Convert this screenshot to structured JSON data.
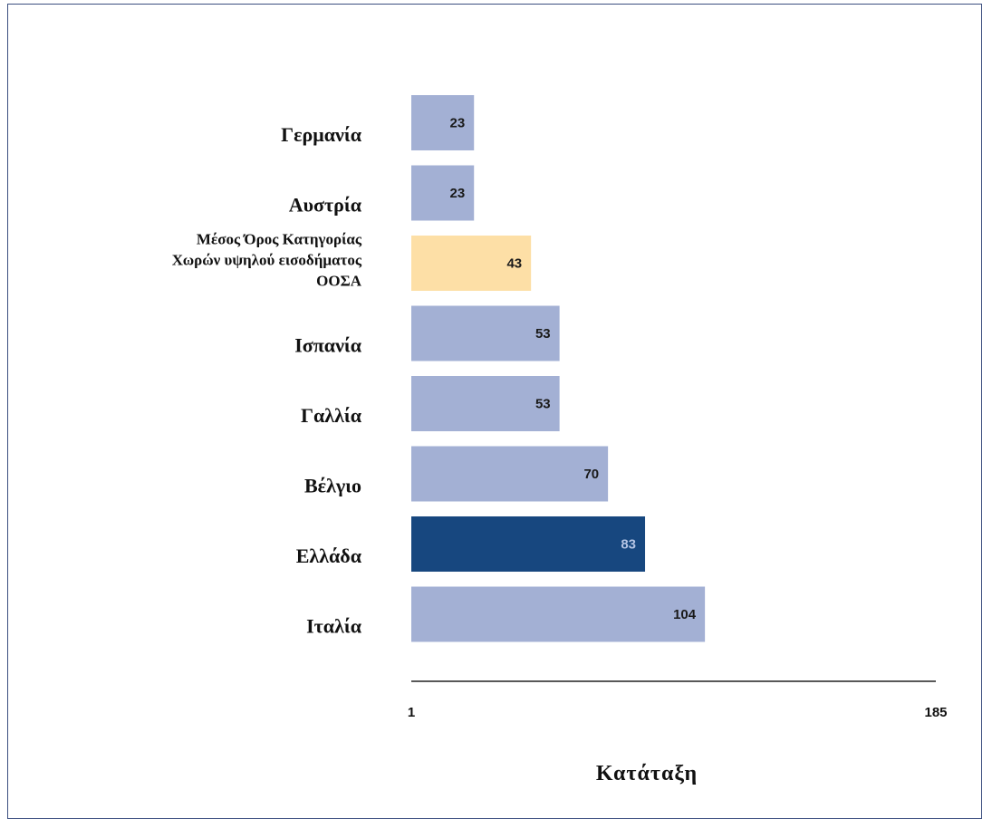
{
  "chart_data": {
    "type": "bar",
    "orientation": "horizontal",
    "categories": [
      [
        "Γερμανία"
      ],
      [
        "Αυστρία"
      ],
      [
        "Μέσος Όρος Κατηγορίας",
        "Χωρών υψηλού εισοδήματος",
        "ΟΟΣΑ"
      ],
      [
        "Ισπανία"
      ],
      [
        "Γαλλία"
      ],
      [
        "Βέλγιο"
      ],
      [
        "Ελλάδα"
      ],
      [
        "Ιταλία"
      ]
    ],
    "values": [
      23,
      23,
      43,
      53,
      53,
      70,
      83,
      104
    ],
    "value_labels": [
      "23",
      "23",
      "43",
      "53",
      "53",
      "70",
      "83",
      "104"
    ],
    "bar_colors": [
      "#a3b0d4",
      "#a3b0d4",
      "#fddfa6",
      "#a3b0d4",
      "#a3b0d4",
      "#a3b0d4",
      "#17477f",
      "#a3b0d4"
    ],
    "label_colors": [
      "#1a1a1a",
      "#1a1a1a",
      "#1a1a1a",
      "#1a1a1a",
      "#1a1a1a",
      "#1a1a1a",
      "#b4c4e4",
      "#1a1a1a"
    ],
    "xlim": [
      1,
      185
    ],
    "xticks": [
      "1",
      "185"
    ],
    "xlabel": "Κατάταξη",
    "title": "",
    "grid": false,
    "legend": "none"
  }
}
